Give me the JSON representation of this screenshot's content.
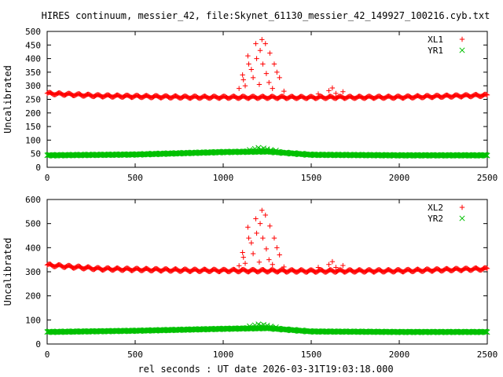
{
  "chart_data": {
    "type": "scatter",
    "title": "HIRES continuum, messier_42, file:Skynet_61130_messier_42_149927_100216.cyb.txt",
    "xlabel": "rel seconds : UT date 2026-03-31T19:03:18.000",
    "colors": {
      "red": "#ff0000",
      "green": "#00c000",
      "axis": "#000000"
    },
    "panels": [
      {
        "id": "top",
        "ylabel": "Uncalibrated",
        "xlim": [
          0,
          2500
        ],
        "ylim": [
          0,
          500
        ],
        "xticks": [
          0,
          500,
          1000,
          1500,
          2000,
          2500
        ],
        "yticks": [
          0,
          50,
          100,
          150,
          200,
          250,
          300,
          350,
          400,
          450,
          500
        ],
        "grid": false,
        "legend_position": "top-right",
        "series": [
          {
            "name": "XL1",
            "color": "#ff0000",
            "marker": "plus",
            "baseline": [
              [
                0,
                272
              ],
              [
                300,
                263
              ],
              [
                800,
                258
              ],
              [
                1500,
                257
              ],
              [
                2000,
                258
              ],
              [
                2500,
                265
              ]
            ],
            "wiggle_amplitude": 4,
            "wiggle_period": 55,
            "spikes": [
              [
                1090,
                290
              ],
              [
                1110,
                340
              ],
              [
                1115,
                322
              ],
              [
                1125,
                300
              ],
              [
                1140,
                410
              ],
              [
                1145,
                380
              ],
              [
                1160,
                360
              ],
              [
                1170,
                330
              ],
              [
                1185,
                455
              ],
              [
                1190,
                400
              ],
              [
                1205,
                305
              ],
              [
                1210,
                430
              ],
              [
                1220,
                470
              ],
              [
                1225,
                380
              ],
              [
                1240,
                455
              ],
              [
                1245,
                345
              ],
              [
                1260,
                312
              ],
              [
                1265,
                420
              ],
              [
                1280,
                290
              ],
              [
                1290,
                380
              ],
              [
                1305,
                350
              ],
              [
                1320,
                330
              ],
              [
                1345,
                280
              ],
              [
                1540,
                270
              ],
              [
                1600,
                282
              ],
              [
                1620,
                292
              ],
              [
                1640,
                272
              ],
              [
                1680,
                278
              ]
            ]
          },
          {
            "name": "YR1",
            "color": "#00c000",
            "marker": "cross",
            "baseline": [
              [
                0,
                44
              ],
              [
                500,
                47
              ],
              [
                1000,
                56
              ],
              [
                1250,
                58
              ],
              [
                1500,
                46
              ],
              [
                2000,
                44
              ],
              [
                2500,
                44
              ]
            ],
            "wiggle_amplitude": 2,
            "wiggle_period": 45,
            "spikes": [
              [
                1150,
                64
              ],
              [
                1180,
                68
              ],
              [
                1200,
                72
              ],
              [
                1215,
                66
              ],
              [
                1230,
                70
              ],
              [
                1250,
                67
              ],
              [
                1270,
                64
              ],
              [
                1300,
                62
              ]
            ]
          }
        ]
      },
      {
        "id": "bottom",
        "ylabel": "Uncalibrated",
        "xlim": [
          0,
          2500
        ],
        "ylim": [
          0,
          600
        ],
        "xticks": [
          0,
          500,
          1000,
          1500,
          2000,
          2500
        ],
        "yticks": [
          0,
          100,
          200,
          300,
          400,
          500,
          600
        ],
        "grid": false,
        "legend_position": "top-right",
        "series": [
          {
            "name": "XL2",
            "color": "#ff0000",
            "marker": "plus",
            "baseline": [
              [
                0,
                328
              ],
              [
                300,
                312
              ],
              [
                800,
                306
              ],
              [
                1500,
                303
              ],
              [
                2000,
                304
              ],
              [
                2500,
                312
              ]
            ],
            "wiggle_amplitude": 5,
            "wiggle_period": 55,
            "spikes": [
              [
                1090,
                325
              ],
              [
                1110,
                380
              ],
              [
                1115,
                360
              ],
              [
                1125,
                335
              ],
              [
                1140,
                485
              ],
              [
                1145,
                440
              ],
              [
                1160,
                420
              ],
              [
                1170,
                375
              ],
              [
                1185,
                520
              ],
              [
                1190,
                460
              ],
              [
                1205,
                340
              ],
              [
                1210,
                500
              ],
              [
                1220,
                555
              ],
              [
                1225,
                440
              ],
              [
                1240,
                535
              ],
              [
                1245,
                395
              ],
              [
                1260,
                350
              ],
              [
                1265,
                490
              ],
              [
                1280,
                330
              ],
              [
                1290,
                440
              ],
              [
                1305,
                400
              ],
              [
                1320,
                370
              ],
              [
                1345,
                320
              ],
              [
                1540,
                318
              ],
              [
                1600,
                330
              ],
              [
                1620,
                342
              ],
              [
                1640,
                318
              ],
              [
                1680,
                326
              ]
            ]
          },
          {
            "name": "YR2",
            "color": "#00c000",
            "marker": "cross",
            "baseline": [
              [
                0,
                50
              ],
              [
                500,
                55
              ],
              [
                1000,
                63
              ],
              [
                1250,
                66
              ],
              [
                1500,
                52
              ],
              [
                2000,
                50
              ],
              [
                2500,
                50
              ]
            ],
            "wiggle_amplitude": 2,
            "wiggle_period": 45,
            "spikes": [
              [
                1150,
                74
              ],
              [
                1180,
                78
              ],
              [
                1200,
                82
              ],
              [
                1215,
                76
              ],
              [
                1230,
                80
              ],
              [
                1250,
                77
              ],
              [
                1270,
                73
              ],
              [
                1300,
                70
              ]
            ]
          }
        ]
      }
    ]
  }
}
